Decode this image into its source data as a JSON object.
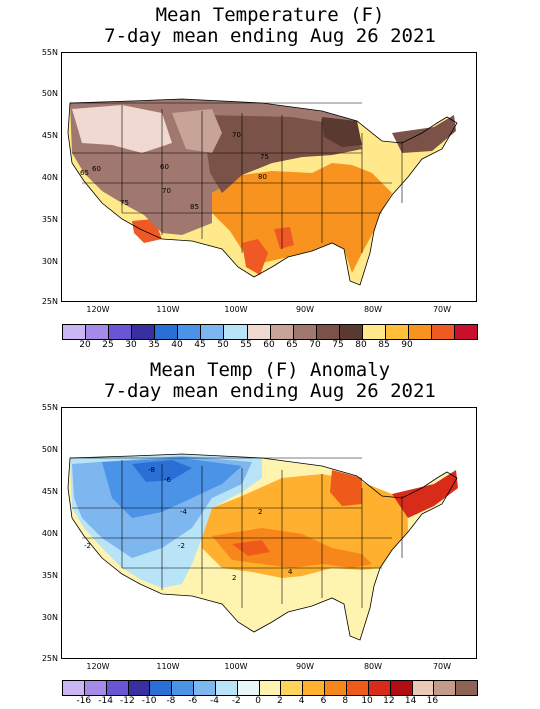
{
  "top": {
    "title_line1": "Mean Temperature (F)",
    "title_line2": "7-day mean ending Aug 26 2021",
    "contour_labels": [
      "70",
      "75",
      "60",
      "65",
      "70",
      "80",
      "85",
      "75",
      "60"
    ],
    "legend": {
      "colors": [
        "#c9b6f2",
        "#a58ae8",
        "#6a55d4",
        "#3a2fa0",
        "#2a6fd6",
        "#4b93e6",
        "#7eb7f0",
        "#b9e4f8",
        "#efd9d0",
        "#c8a397",
        "#a07870",
        "#7a5247",
        "#5a3a30",
        "#ffe98a",
        "#ffbf3b",
        "#f7931e",
        "#ef5a24",
        "#c8102e"
      ],
      "labels": [
        "20",
        "25",
        "30",
        "35",
        "40",
        "45",
        "50",
        "55",
        "60",
        "65",
        "70",
        "75",
        "80",
        "85",
        "90"
      ]
    }
  },
  "bottom": {
    "title_line1": "Mean Temp (F) Anomaly",
    "title_line2": "7-day mean ending Aug 26 2021",
    "contour_labels": [
      "-8",
      "-6",
      "-4",
      "-2",
      "2",
      "4",
      "2",
      "-2"
    ],
    "legend": {
      "colors": [
        "#c9b6f2",
        "#a58ae8",
        "#6a55d4",
        "#3a2fa0",
        "#2a6fd6",
        "#4b93e6",
        "#7eb7f0",
        "#b9e4f8",
        "#e9f7fb",
        "#fff3b0",
        "#ffd35c",
        "#ffb02e",
        "#f7871b",
        "#ee5a1a",
        "#d92b1a",
        "#b00e14",
        "#eac9b8",
        "#c49a8a",
        "#8c6354"
      ],
      "labels": [
        "-16",
        "-14",
        "-12",
        "-10",
        "-8",
        "-6",
        "-4",
        "-2",
        "0",
        "2",
        "4",
        "6",
        "8",
        "10",
        "12",
        "14",
        "16"
      ]
    }
  },
  "axes": {
    "lat_labels": [
      "55N",
      "50N",
      "45N",
      "40N",
      "35N",
      "30N",
      "25N"
    ],
    "lon_labels": [
      "120W",
      "110W",
      "100W",
      "90W",
      "80W",
      "70W"
    ]
  }
}
